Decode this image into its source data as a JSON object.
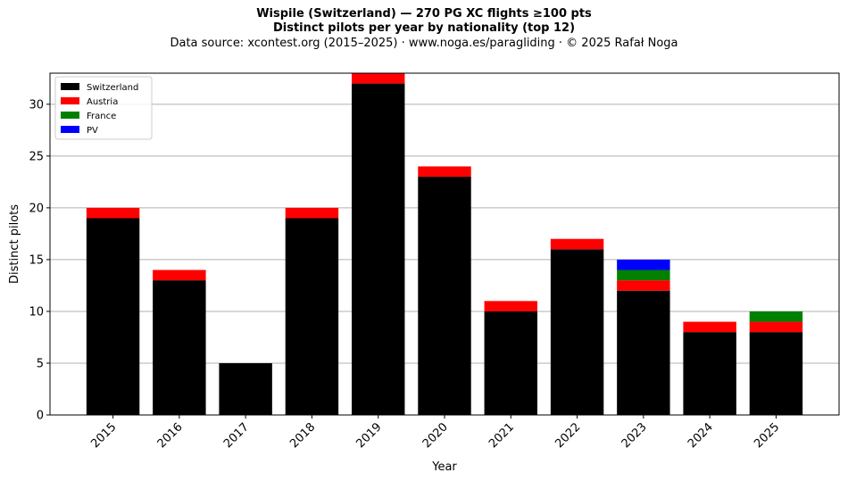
{
  "chart_data": {
    "type": "bar",
    "stacked": true,
    "title": "Wispile (Switzerland)  —  270 PG XC flights ≥100 pts",
    "subtitle": "Distinct pilots per year by nationality (top 12)",
    "source": "Data source: xcontest.org (2015–2025)  ·  www.noga.es/paragliding  ·  © 2025 Rafał Noga",
    "xlabel": "Year",
    "ylabel": "Distinct pilots",
    "ylim": [
      0,
      33
    ],
    "yticks": [
      0,
      5,
      10,
      15,
      20,
      25,
      30
    ],
    "grid": "y",
    "legend_position": "top-left",
    "categories": [
      "2015",
      "2016",
      "2017",
      "2018",
      "2019",
      "2020",
      "2021",
      "2022",
      "2023",
      "2024",
      "2025"
    ],
    "series": [
      {
        "name": "Switzerland",
        "color": "#000000",
        "values": [
          19,
          13,
          5,
          19,
          32,
          23,
          10,
          16,
          12,
          8,
          8
        ]
      },
      {
        "name": "Austria",
        "color": "#ff0000",
        "values": [
          1,
          1,
          0,
          1,
          1,
          1,
          1,
          1,
          1,
          1,
          1
        ]
      },
      {
        "name": "France",
        "color": "#008000",
        "values": [
          0,
          0,
          0,
          0,
          0,
          0,
          0,
          0,
          1,
          0,
          1
        ]
      },
      {
        "name": "PV",
        "color": "#0000ff",
        "values": [
          0,
          0,
          0,
          0,
          0,
          0,
          0,
          0,
          1,
          0,
          0
        ]
      }
    ]
  }
}
